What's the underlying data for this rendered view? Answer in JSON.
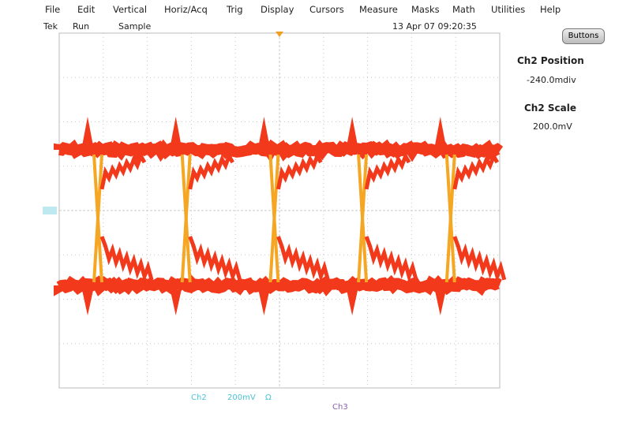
{
  "menu": [
    "File",
    "Edit",
    "Vertical",
    "Horiz/Acq",
    "Trig",
    "Display",
    "Cursors",
    "Measure",
    "Masks",
    "Math",
    "Utilities",
    "Help"
  ],
  "status": {
    "brand": "Tek",
    "state": "Run",
    "mode": "Sample",
    "datetime": "13 Apr 07 09:20:35"
  },
  "side_panel": {
    "button": "Buttons",
    "position_label": "Ch2 Position",
    "position_value": "-240.0mdiv",
    "scale_label": "Ch2 Scale",
    "scale_value": "200.0mV"
  },
  "footer": {
    "channel": "Ch2",
    "scale": "200mV",
    "coupling": "Ω",
    "channel2": "Ch3"
  }
}
